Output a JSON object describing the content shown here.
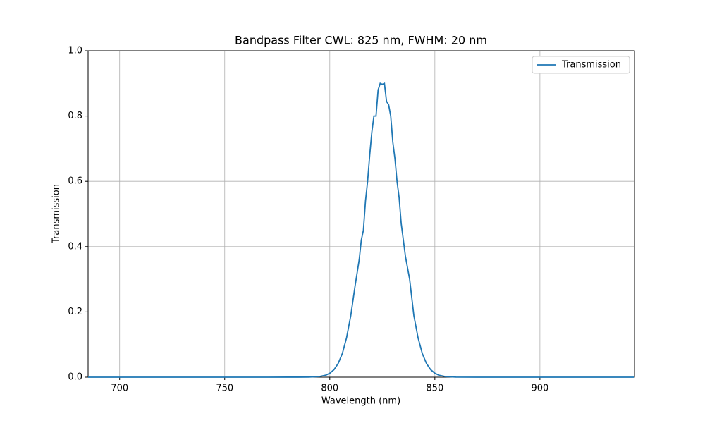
{
  "chart_data": {
    "type": "line",
    "title": "Bandpass Filter CWL: 825 nm, FWHM: 20 nm",
    "x_label": "Wavelength (nm)",
    "y_label": "Transmission",
    "x": [
      685,
      770,
      780,
      785,
      790,
      795,
      798,
      800,
      802,
      804,
      806,
      808,
      810,
      812,
      814,
      815,
      816,
      817,
      818,
      819,
      820,
      821,
      822,
      823,
      824,
      825,
      826,
      827,
      828,
      829,
      830,
      831,
      832,
      833,
      834,
      835,
      836,
      838,
      840,
      842,
      844,
      846,
      848,
      850,
      852,
      855,
      860,
      870,
      945
    ],
    "series": [
      {
        "name": "Transmission",
        "color": "#1f77b4",
        "values": [
          0,
          0,
          0.0001,
          0.0001,
          0.0002,
          0.002,
          0.006,
          0.012,
          0.023,
          0.042,
          0.073,
          0.121,
          0.189,
          0.278,
          0.36,
          0.42,
          0.45,
          0.54,
          0.6,
          0.68,
          0.75,
          0.8,
          0.8,
          0.88,
          0.9,
          0.897,
          0.9,
          0.845,
          0.835,
          0.8,
          0.72,
          0.67,
          0.6,
          0.55,
          0.47,
          0.42,
          0.37,
          0.3,
          0.189,
          0.121,
          0.073,
          0.042,
          0.023,
          0.012,
          0.006,
          0.002,
          0.0002,
          0,
          0
        ]
      }
    ],
    "xlim": [
      685,
      945
    ],
    "ylim": [
      0,
      1
    ],
    "xticks": [
      700,
      750,
      800,
      850,
      900
    ],
    "yticks": [
      {
        "value": 0,
        "label": "0.0"
      },
      {
        "value": 0.2,
        "label": "0.2"
      },
      {
        "value": 0.4,
        "label": "0.4"
      },
      {
        "value": 0.6,
        "label": "0.6"
      },
      {
        "value": 0.8,
        "label": "0.8"
      },
      {
        "value": 1,
        "label": "1.0"
      }
    ],
    "grid": true,
    "legend": "upper right"
  }
}
